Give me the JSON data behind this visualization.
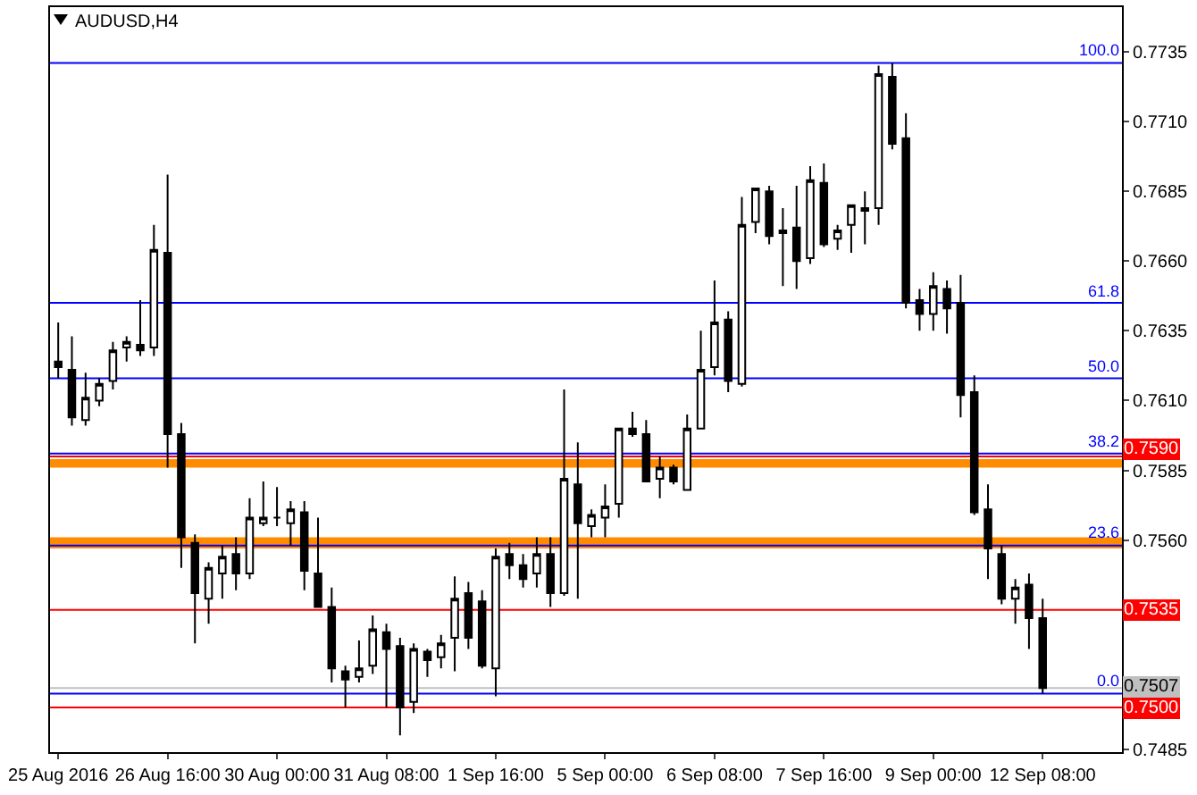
{
  "chart_data": {
    "type": "candlestick",
    "title": "AUDUSD,H4",
    "color": "#000000",
    "categories": [
      "25 Aug 2016",
      null,
      null,
      null,
      null,
      null,
      null,
      null,
      "26 Aug 16:00",
      null,
      null,
      null,
      null,
      null,
      null,
      null,
      "30 Aug 00:00",
      null,
      null,
      null,
      null,
      null,
      null,
      null,
      "31 Aug 08:00",
      null,
      null,
      null,
      null,
      null,
      null,
      null,
      "1 Sep 16:00",
      null,
      null,
      null,
      null,
      null,
      null,
      null,
      "5 Sep 00:00",
      null,
      null,
      null,
      null,
      null,
      null,
      null,
      "6 Sep 08:00",
      null,
      null,
      null,
      null,
      null,
      null,
      null,
      "7 Sep 16:00",
      null,
      null,
      null,
      null,
      null,
      null,
      null,
      "9 Sep 00:00",
      null,
      null,
      null,
      null,
      null,
      null,
      null,
      "12 Sep 08:00"
    ],
    "ohlc": [
      [
        0.7624,
        0.7638,
        0.7618,
        0.7622
      ],
      [
        0.7621,
        0.7633,
        0.7601,
        0.7604
      ],
      [
        0.7603,
        0.762,
        0.7601,
        0.7611
      ],
      [
        0.761,
        0.7618,
        0.7608,
        0.7616
      ],
      [
        0.7617,
        0.7631,
        0.7614,
        0.7628
      ],
      [
        0.7629,
        0.7633,
        0.7624,
        0.7631
      ],
      [
        0.763,
        0.7646,
        0.7626,
        0.7628
      ],
      [
        0.7629,
        0.7673,
        0.7626,
        0.7664
      ],
      [
        0.7663,
        0.7691,
        0.7586,
        0.7598
      ],
      [
        0.7598,
        0.7602,
        0.755,
        0.7561
      ],
      [
        0.7559,
        0.7562,
        0.7523,
        0.7541
      ],
      [
        0.7539,
        0.7552,
        0.753,
        0.755
      ],
      [
        0.7548,
        0.7558,
        0.7539,
        0.7554
      ],
      [
        0.7555,
        0.7561,
        0.7542,
        0.7548
      ],
      [
        0.7548,
        0.7575,
        0.7546,
        0.7568
      ],
      [
        0.7566,
        0.7581,
        0.7565,
        0.7568
      ],
      [
        0.7568,
        0.7579,
        0.7565,
        0.7568
      ],
      [
        0.7566,
        0.7574,
        0.7558,
        0.7571
      ],
      [
        0.757,
        0.7574,
        0.7542,
        0.7549
      ],
      [
        0.7548,
        0.7568,
        0.7536,
        0.7536
      ],
      [
        0.7536,
        0.7543,
        0.7509,
        0.7514
      ],
      [
        0.7513,
        0.7515,
        0.75,
        0.751
      ],
      [
        0.7511,
        0.7524,
        0.7509,
        0.7514
      ],
      [
        0.7515,
        0.7533,
        0.7512,
        0.7528
      ],
      [
        0.7527,
        0.753,
        0.75,
        0.7521
      ],
      [
        0.7522,
        0.7525,
        0.749,
        0.75
      ],
      [
        0.7502,
        0.7523,
        0.7498,
        0.7521
      ],
      [
        0.752,
        0.7521,
        0.7511,
        0.7517
      ],
      [
        0.7518,
        0.7526,
        0.7514,
        0.7523
      ],
      [
        0.7525,
        0.7547,
        0.7513,
        0.7539
      ],
      [
        0.7541,
        0.7545,
        0.7521,
        0.7525
      ],
      [
        0.7538,
        0.7542,
        0.7514,
        0.7515
      ],
      [
        0.7514,
        0.7557,
        0.7504,
        0.7554
      ],
      [
        0.7555,
        0.7559,
        0.7546,
        0.7551
      ],
      [
        0.7551,
        0.7555,
        0.7543,
        0.7546
      ],
      [
        0.7548,
        0.7561,
        0.7543,
        0.7555
      ],
      [
        0.7555,
        0.7561,
        0.7536,
        0.7541
      ],
      [
        0.7541,
        0.7614,
        0.754,
        0.7582
      ],
      [
        0.758,
        0.7595,
        0.7539,
        0.7566
      ],
      [
        0.7565,
        0.7571,
        0.7561,
        0.7569
      ],
      [
        0.7568,
        0.758,
        0.7561,
        0.7572
      ],
      [
        0.7573,
        0.76,
        0.7568,
        0.76
      ],
      [
        0.76,
        0.7606,
        0.7597,
        0.7598
      ],
      [
        0.7598,
        0.7603,
        0.7581,
        0.7581
      ],
      [
        0.7582,
        0.759,
        0.7575,
        0.7586
      ],
      [
        0.7586,
        0.7587,
        0.758,
        0.7581
      ],
      [
        0.7578,
        0.7605,
        0.7578,
        0.76
      ],
      [
        0.76,
        0.7635,
        0.76,
        0.7621
      ],
      [
        0.7622,
        0.7653,
        0.7619,
        0.7638
      ],
      [
        0.7639,
        0.7642,
        0.7613,
        0.7617
      ],
      [
        0.7616,
        0.7683,
        0.7615,
        0.7673
      ],
      [
        0.7674,
        0.7686,
        0.767,
        0.7686
      ],
      [
        0.7685,
        0.7687,
        0.7666,
        0.7669
      ],
      [
        0.767,
        0.7679,
        0.7651,
        0.7671
      ],
      [
        0.7672,
        0.7687,
        0.765,
        0.766
      ],
      [
        0.7661,
        0.7694,
        0.7659,
        0.7689
      ],
      [
        0.7688,
        0.7695,
        0.7665,
        0.7666
      ],
      [
        0.7668,
        0.7673,
        0.7664,
        0.7671
      ],
      [
        0.7673,
        0.768,
        0.7663,
        0.768
      ],
      [
        0.7678,
        0.7685,
        0.7666,
        0.7679
      ],
      [
        0.7679,
        0.773,
        0.7673,
        0.7727
      ],
      [
        0.7726,
        0.7731,
        0.77,
        0.7702
      ],
      [
        0.7704,
        0.7713,
        0.7643,
        0.7645
      ],
      [
        0.7646,
        0.765,
        0.7635,
        0.7641
      ],
      [
        0.7641,
        0.7656,
        0.7635,
        0.7651
      ],
      [
        0.765,
        0.7653,
        0.7634,
        0.7643
      ],
      [
        0.7645,
        0.7655,
        0.7604,
        0.7612
      ],
      [
        0.7613,
        0.7619,
        0.7569,
        0.757
      ],
      [
        0.7571,
        0.758,
        0.7546,
        0.7557
      ],
      [
        0.7555,
        0.7558,
        0.7537,
        0.7539
      ],
      [
        0.7539,
        0.7546,
        0.753,
        0.7543
      ],
      [
        0.7544,
        0.7548,
        0.7521,
        0.7532
      ],
      [
        0.7532,
        0.7539,
        0.7505,
        0.7507
      ]
    ],
    "ylim": [
      0.7484,
      0.7751
    ],
    "yticks": [
      0.7485,
      {
        "value": 0.756,
        "label": "0.7560"
      },
      0.7585,
      {
        "value": 0.761,
        "label": "0.7610"
      },
      0.7635,
      {
        "value": 0.766,
        "label": "0.7660"
      },
      0.7685,
      {
        "value": 0.771,
        "label": "0.7710"
      },
      0.7735
    ],
    "bands": [
      {
        "axis": "y",
        "from": 0.7586,
        "to": 0.7589,
        "color": "#ff8c00"
      },
      {
        "axis": "y",
        "from": 0.7557,
        "to": 0.7561,
        "color": "#ff8c00"
      }
    ],
    "ref_lines": [
      {
        "axis": "y",
        "value": 0.759,
        "label": "0.7590",
        "color": "#ff0000"
      },
      {
        "axis": "y",
        "value": 0.7535,
        "label": "0.7535",
        "color": "#ff0000"
      },
      {
        "axis": "y",
        "value": 0.75,
        "label": "0.7500",
        "color": "#ff0000"
      },
      {
        "axis": "y",
        "value": 0.7507,
        "label": "0.7507",
        "color": "#c0c0c0"
      },
      {
        "axis": "y",
        "value": 0.7731,
        "color": "#0000ff"
      },
      {
        "axis": "y",
        "value": 0.7645,
        "color": "#0000ff"
      },
      {
        "axis": "y",
        "value": 0.7618,
        "color": "#0000ff"
      },
      {
        "axis": "y",
        "value": 0.7591,
        "color": "#0000ff"
      },
      {
        "axis": "y",
        "value": 0.7558,
        "color": "#0000ff"
      },
      {
        "axis": "y",
        "value": 0.7505,
        "color": "#0000ff"
      }
    ],
    "annotations": [
      {
        "text": "100.0",
        "y": 0.7731
      },
      {
        "text": "61.8",
        "y": 0.7645
      },
      {
        "text": "50.0",
        "y": 0.7618
      },
      {
        "text": "38.2",
        "y": 0.7591
      },
      {
        "text": "23.6",
        "y": 0.7558
      },
      {
        "text": "0.0",
        "y": 0.7505
      }
    ]
  }
}
